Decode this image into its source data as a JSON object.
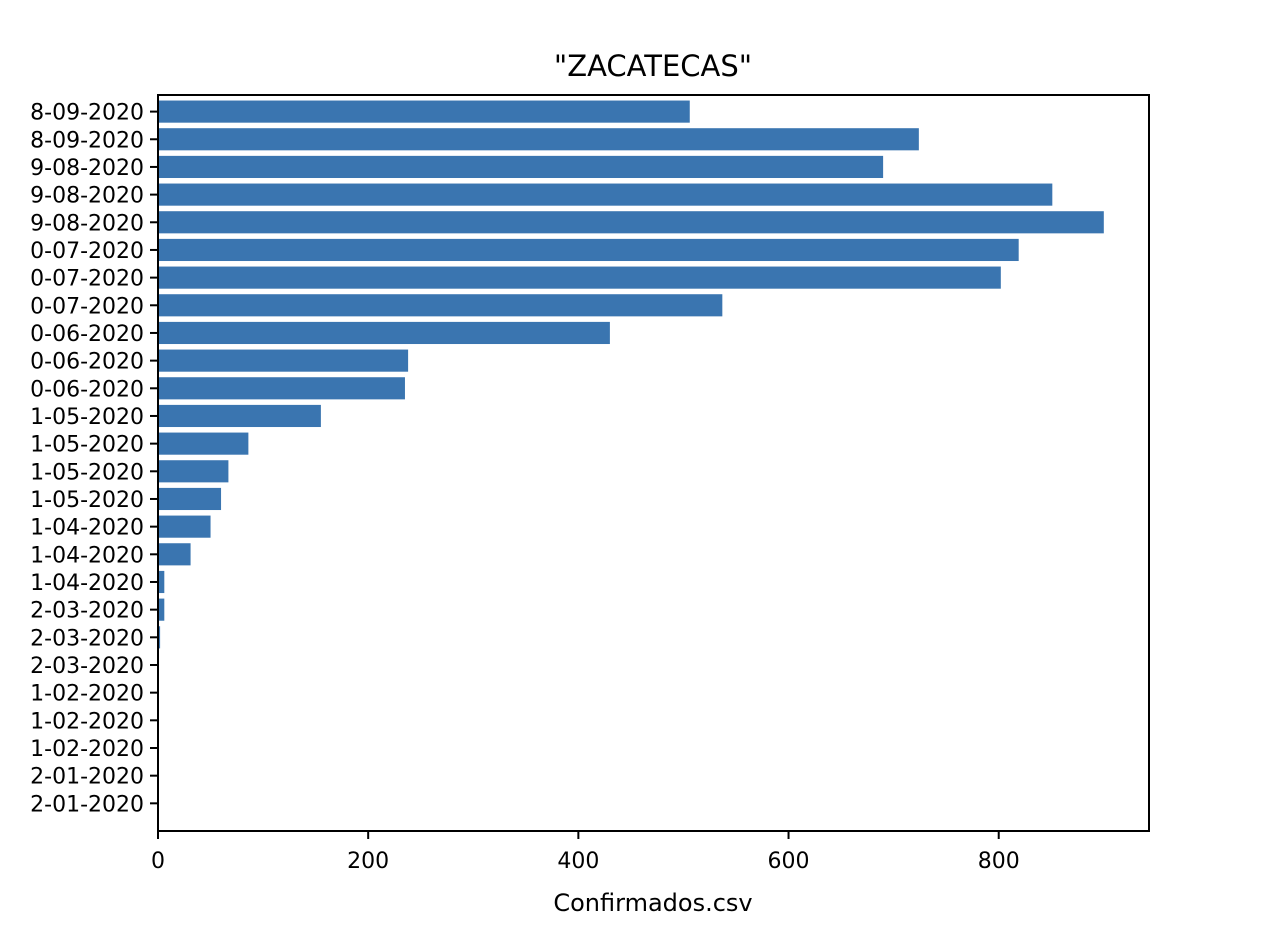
{
  "chart_data": {
    "type": "bar",
    "orientation": "horizontal",
    "title": "\"ZACATECAS\"",
    "xlabel": "Confirmados.csv",
    "ylabel": "",
    "xlim": [
      0,
      943
    ],
    "xticks": [
      0,
      200,
      400,
      600,
      800
    ],
    "bar_color": "#3a75b0",
    "grid": false,
    "legend": "none",
    "categories": [
      "2-01-2020",
      "2-01-2020",
      "1-02-2020",
      "1-02-2020",
      "1-02-2020",
      "2-03-2020",
      "2-03-2020",
      "2-03-2020",
      "1-04-2020",
      "1-04-2020",
      "1-04-2020",
      "1-05-2020",
      "1-05-2020",
      "1-05-2020",
      "1-05-2020",
      "0-06-2020",
      "0-06-2020",
      "0-06-2020",
      "0-07-2020",
      "0-07-2020",
      "0-07-2020",
      "9-08-2020",
      "9-08-2020",
      "9-08-2020",
      "8-09-2020",
      "8-09-2020"
    ],
    "values": [
      0,
      0,
      0,
      0,
      0,
      0,
      2,
      6,
      6,
      31,
      50,
      60,
      67,
      86,
      155,
      235,
      238,
      430,
      537,
      802,
      819,
      900,
      851,
      690,
      724,
      506
    ]
  }
}
